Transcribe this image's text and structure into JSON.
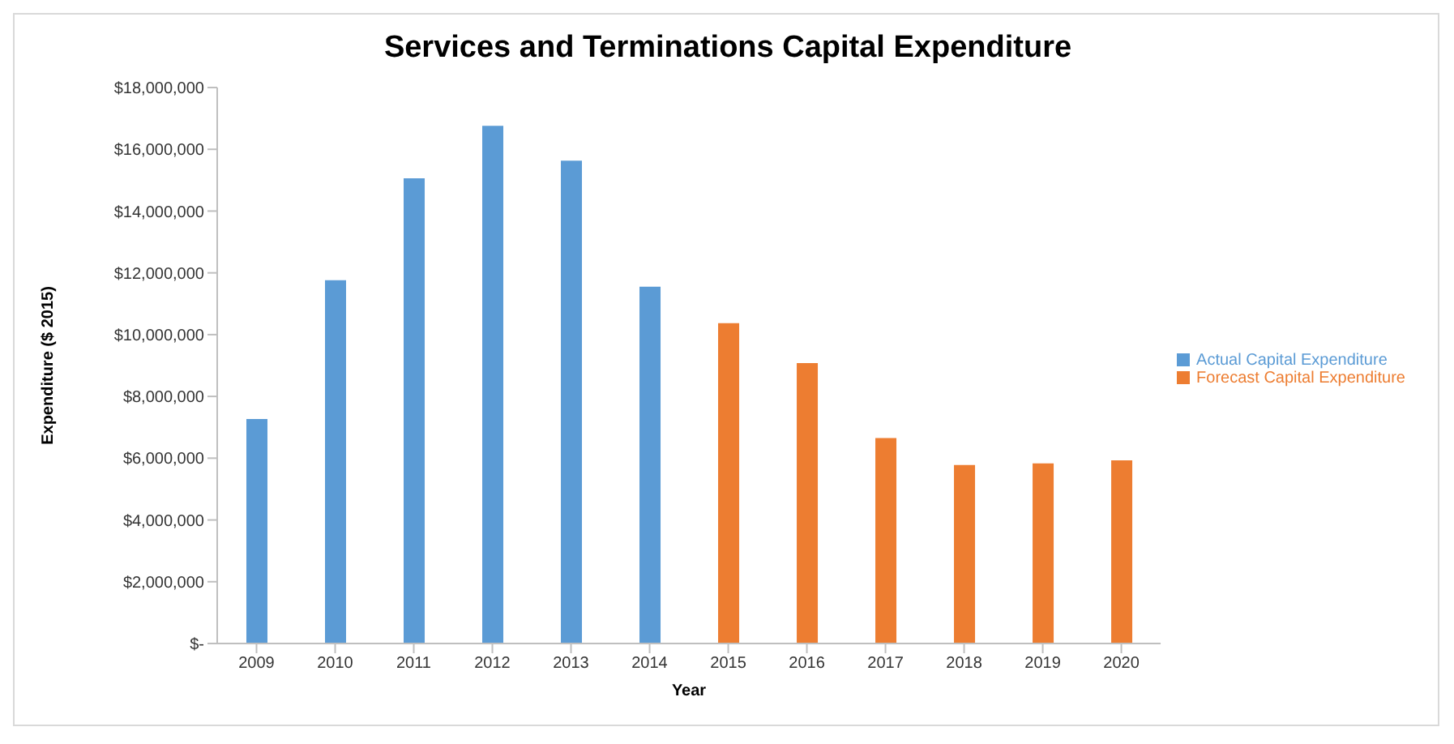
{
  "chart_data": {
    "type": "bar",
    "title": "Services and Terminations Capital Expenditure",
    "xlabel": "Year",
    "ylabel": "Expenditure ($ 2015)",
    "categories": [
      "2009",
      "2010",
      "2011",
      "2012",
      "2013",
      "2014",
      "2015",
      "2016",
      "2017",
      "2018",
      "2019",
      "2020"
    ],
    "series": [
      {
        "name": "Actual Capital Expenditure",
        "color": "#5b9bd5",
        "values": [
          7270000,
          11760000,
          15060000,
          16760000,
          15630000,
          11550000,
          null,
          null,
          null,
          null,
          null,
          null
        ]
      },
      {
        "name": "Forecast Capital Expenditure",
        "color": "#ed7d31",
        "values": [
          null,
          null,
          null,
          null,
          null,
          null,
          10370000,
          9080000,
          6650000,
          5780000,
          5830000,
          5930000
        ]
      }
    ],
    "ylim": [
      0,
      18000000
    ],
    "yticks": [
      {
        "value": 0,
        "label": "$-"
      },
      {
        "value": 2000000,
        "label": "$2,000,000"
      },
      {
        "value": 4000000,
        "label": "$4,000,000"
      },
      {
        "value": 6000000,
        "label": "$6,000,000"
      },
      {
        "value": 8000000,
        "label": "$8,000,000"
      },
      {
        "value": 10000000,
        "label": "$10,000,000"
      },
      {
        "value": 12000000,
        "label": "$12,000,000"
      },
      {
        "value": 14000000,
        "label": "$14,000,000"
      },
      {
        "value": 16000000,
        "label": "$16,000,000"
      },
      {
        "value": 18000000,
        "label": "$18,000,000"
      }
    ],
    "grid": false,
    "legend": "right"
  }
}
